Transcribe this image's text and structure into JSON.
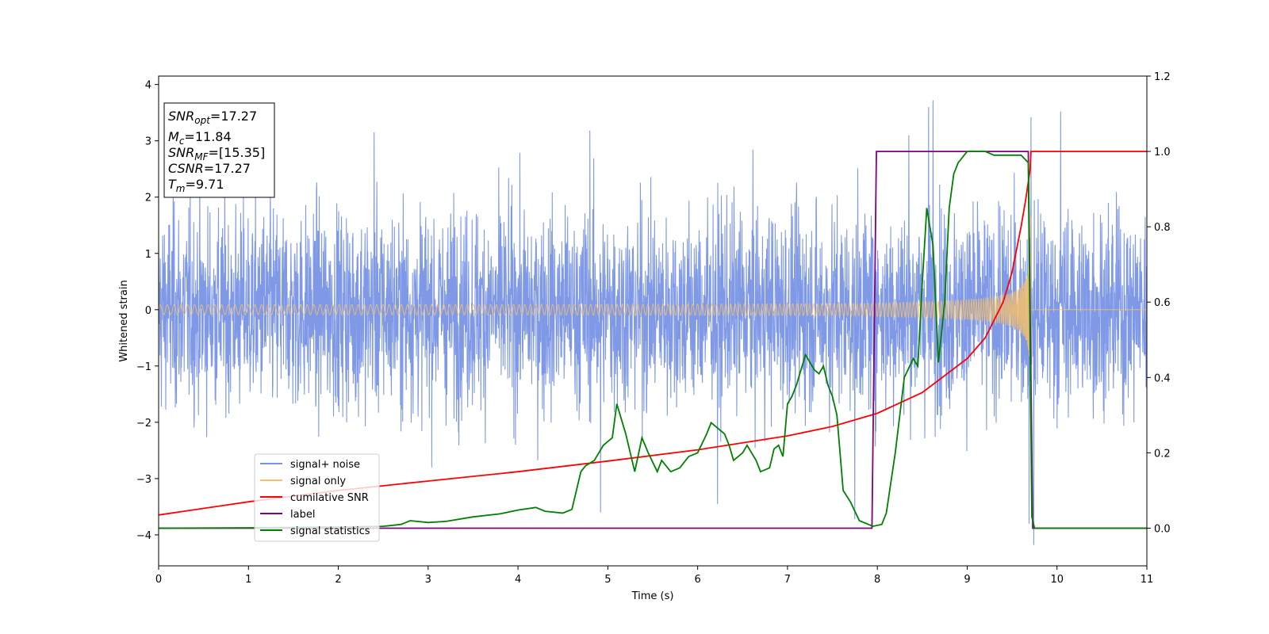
{
  "chart_data": {
    "type": "line",
    "xlabel": "Time (s)",
    "ylabel": "Whitened strain",
    "xlim": [
      0,
      11
    ],
    "ylim": [
      -4.55,
      4.15
    ],
    "y2lim": [
      -0.1,
      1.2
    ],
    "xticks": [
      0,
      1,
      2,
      3,
      4,
      5,
      6,
      7,
      8,
      9,
      10,
      11
    ],
    "yticks": [
      4,
      3,
      2,
      1,
      0,
      -1,
      -2,
      -3,
      -4
    ],
    "y2ticks": [
      1.2,
      1.0,
      0.8,
      0.6,
      0.4,
      0.2,
      0.0
    ],
    "colors": {
      "noise": "#7893e6",
      "signal": "#f5c06b",
      "csnr": "#ff0000",
      "label": "#800080",
      "stat": "#008000"
    },
    "annotation": [
      {
        "sym": "SNR",
        "sub": "opt",
        "value": "=17.27"
      },
      {
        "sym": "M",
        "sub": "c",
        "value": "=11.84"
      },
      {
        "sym": "SNR",
        "sub": "MF",
        "value": "=[15.35]"
      },
      {
        "sym": "CSNR",
        "sub": "",
        "value": "=17.27"
      },
      {
        "sym": "T",
        "sub": "m",
        "value": "=9.71"
      }
    ],
    "legend": [
      {
        "key": "noise",
        "label": "signal+ noise"
      },
      {
        "key": "signal",
        "label": "signal only"
      },
      {
        "key": "csnr",
        "label": "cumilative SNR"
      },
      {
        "key": "label",
        "label": "label"
      },
      {
        "key": "stat",
        "label": "signal statistics"
      }
    ],
    "noise_peaks": [
      {
        "t": 8.62,
        "v": 3.72
      },
      {
        "t": 9.71,
        "v": 3.42
      },
      {
        "t": 10.04,
        "v": 3.52
      },
      {
        "t": 4.8,
        "v": 3.18
      },
      {
        "t": 2.4,
        "v": 3.15
      },
      {
        "t": 8.57,
        "v": 3.6
      },
      {
        "t": 9.74,
        "v": -4.18
      },
      {
        "t": 9.69,
        "v": -3.8
      },
      {
        "t": 7.75,
        "v": -3.72
      },
      {
        "t": 4.92,
        "v": -3.6
      },
      {
        "t": 6.22,
        "v": -3.45
      },
      {
        "t": 8.35,
        "v": 3.1
      }
    ],
    "series": [
      {
        "name": "cumilative SNR",
        "key": "csnr",
        "axis": "right",
        "x": [
          0,
          1,
          2,
          3,
          4,
          5,
          6,
          7,
          7.5,
          8,
          8.5,
          9,
          9.2,
          9.4,
          9.5,
          9.6,
          9.65,
          9.7,
          9.71,
          11
        ],
        "y": [
          0.035,
          0.07,
          0.1,
          0.125,
          0.15,
          0.178,
          0.208,
          0.245,
          0.27,
          0.305,
          0.36,
          0.45,
          0.505,
          0.6,
          0.68,
          0.8,
          0.87,
          0.95,
          1.0,
          1.0
        ]
      },
      {
        "name": "label",
        "key": "label",
        "axis": "right",
        "x": [
          0,
          7.94,
          7.99,
          9.68,
          9.73,
          11
        ],
        "y": [
          0.0,
          0.0,
          1.0,
          1.0,
          0.0,
          0.0
        ]
      },
      {
        "name": "signal statistics",
        "key": "stat",
        "axis": "right",
        "x": [
          0,
          1,
          2,
          2.5,
          2.7,
          2.8,
          3.0,
          3.2,
          3.5,
          3.8,
          4.0,
          4.2,
          4.3,
          4.5,
          4.6,
          4.7,
          4.75,
          4.85,
          4.95,
          5.0,
          5.05,
          5.1,
          5.2,
          5.3,
          5.38,
          5.45,
          5.55,
          5.6,
          5.7,
          5.8,
          5.9,
          6.0,
          6.1,
          6.15,
          6.2,
          6.3,
          6.35,
          6.4,
          6.5,
          6.55,
          6.65,
          6.7,
          6.8,
          6.85,
          6.9,
          6.95,
          7.0,
          7.05,
          7.1,
          7.2,
          7.3,
          7.35,
          7.4,
          7.45,
          7.5,
          7.55,
          7.62,
          7.7,
          7.8,
          7.9,
          7.95,
          8.05,
          8.1,
          8.2,
          8.3,
          8.4,
          8.45,
          8.5,
          8.55,
          8.62,
          8.68,
          8.75,
          8.8,
          8.85,
          8.9,
          9.0,
          9.1,
          9.2,
          9.3,
          9.4,
          9.5,
          9.6,
          9.68,
          9.72,
          9.75,
          9.8,
          10.0,
          11.0
        ],
        "y": [
          0.0,
          0.001,
          0.003,
          0.005,
          0.01,
          0.02,
          0.015,
          0.018,
          0.03,
          0.038,
          0.048,
          0.055,
          0.045,
          0.04,
          0.05,
          0.15,
          0.165,
          0.18,
          0.22,
          0.23,
          0.24,
          0.33,
          0.25,
          0.15,
          0.24,
          0.2,
          0.15,
          0.18,
          0.15,
          0.16,
          0.19,
          0.2,
          0.25,
          0.28,
          0.27,
          0.25,
          0.22,
          0.18,
          0.2,
          0.22,
          0.18,
          0.15,
          0.16,
          0.21,
          0.22,
          0.19,
          0.33,
          0.35,
          0.38,
          0.46,
          0.42,
          0.41,
          0.43,
          0.38,
          0.35,
          0.3,
          0.1,
          0.07,
          0.02,
          0.01,
          0.005,
          0.01,
          0.04,
          0.2,
          0.4,
          0.45,
          0.43,
          0.65,
          0.85,
          0.75,
          0.44,
          0.6,
          0.85,
          0.94,
          0.97,
          1.0,
          1.0,
          1.0,
          0.99,
          0.99,
          0.99,
          0.99,
          0.97,
          0.03,
          0.0,
          0.0,
          0.0,
          0.0
        ]
      }
    ]
  }
}
